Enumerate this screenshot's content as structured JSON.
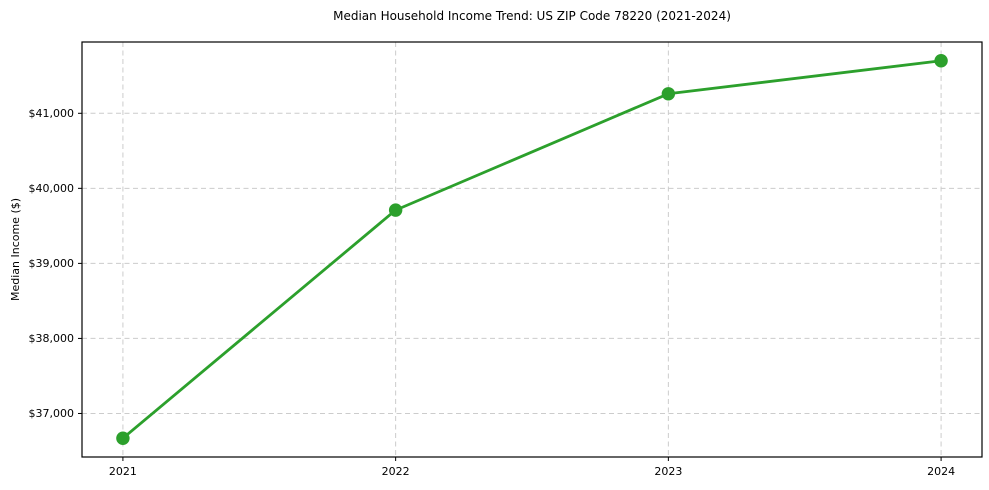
{
  "chart_data": {
    "type": "line",
    "title": "Median Household Income Trend: US ZIP Code 78220 (2021-2024)",
    "ylabel": "Median Income ($)",
    "xlabel": "",
    "x": [
      2021,
      2022,
      2023,
      2024
    ],
    "xtick_labels": [
      "2021",
      "2022",
      "2023",
      "2024"
    ],
    "values": [
      36670,
      39710,
      41260,
      41700
    ],
    "yticks": [
      37000,
      38000,
      39000,
      40000,
      41000
    ],
    "ytick_labels": [
      "$37,000",
      "$38,000",
      "$39,000",
      "$40,000",
      "$41,000"
    ],
    "ylim": [
      36420,
      41950
    ],
    "xlim": [
      2020.85,
      2024.15
    ],
    "grid": true,
    "grid_style": "dashed",
    "legend": "none",
    "marker": "circle",
    "colors": {
      "line": "#2ca02c",
      "marker": "#2ca02c",
      "grid": "#cccccc",
      "spine": "#000000",
      "text": "#000000",
      "background": "#ffffff"
    }
  }
}
